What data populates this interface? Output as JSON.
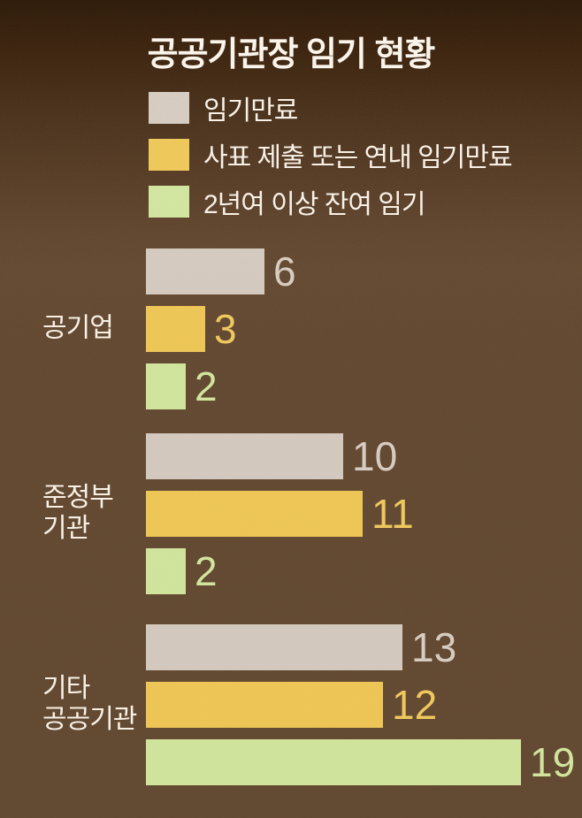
{
  "title": "공공기관장 임기 현황",
  "colors": {
    "background_top": "#2b1a0b",
    "background_main": "#614831",
    "text": "#f8f0e5",
    "expired": "#d2c7bc",
    "resigning": "#edc455",
    "remaining": "#cfe39a"
  },
  "legend": [
    {
      "key": "expired",
      "label": "임기만료",
      "color": "#d2c7bc"
    },
    {
      "key": "resigning",
      "label": "사표 제출 또는 연내 임기만료",
      "color": "#edc455"
    },
    {
      "key": "remaining",
      "label": "2년여 이상 잔여 임기",
      "color": "#cfe39a"
    }
  ],
  "chart_data": {
    "type": "bar",
    "orientation": "horizontal",
    "title": "공공기관장 임기 현황",
    "categories": [
      "공기업",
      "준정부\n기관",
      "기타\n공공기관"
    ],
    "series": [
      {
        "key": "expired",
        "name": "임기만료",
        "color": "#d2c7bc",
        "value_color": "#d6cabf",
        "values": [
          6,
          10,
          13
        ]
      },
      {
        "key": "resigning",
        "name": "사표 제출 또는 연내 임기만료",
        "color": "#edc455",
        "value_color": "#eec75b",
        "values": [
          3,
          11,
          12
        ]
      },
      {
        "key": "remaining",
        "name": "2년여 이상 잔여 임기",
        "color": "#cfe39a",
        "value_color": "#d0e49b",
        "values": [
          2,
          2,
          19
        ]
      }
    ],
    "value_labels_shown": true,
    "xlim": [
      0,
      20
    ],
    "grid": false,
    "legend_position": "top-left"
  }
}
